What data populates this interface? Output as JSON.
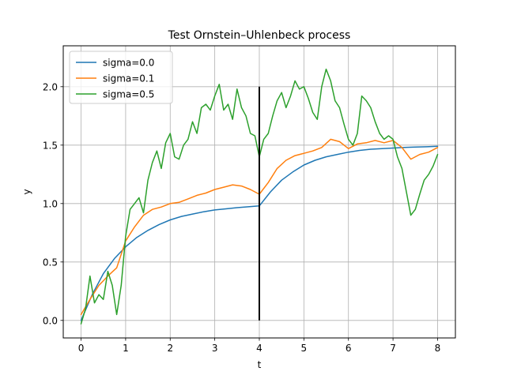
{
  "chart_data": {
    "type": "line",
    "title": "Test Ornstein–Uhlenbeck process",
    "xlabel": "t",
    "ylabel": "y",
    "xlim": [
      -0.4,
      8.4
    ],
    "ylim": [
      -0.15,
      2.35
    ],
    "xticks": [
      0,
      1,
      2,
      3,
      4,
      5,
      6,
      7,
      8
    ],
    "yticks": [
      0.0,
      0.5,
      1.0,
      1.5,
      2.0
    ],
    "ytick_labels": [
      "0.0",
      "0.5",
      "1.0",
      "1.5",
      "2.0"
    ],
    "grid": true,
    "legend_position": "top-left",
    "series": [
      {
        "name": "sigma=0.0",
        "color": "#1f77b4",
        "x": [
          0,
          0.25,
          0.5,
          0.75,
          1.0,
          1.25,
          1.5,
          1.75,
          2.0,
          2.25,
          2.5,
          2.75,
          3.0,
          3.25,
          3.5,
          3.75,
          4.0,
          4.25,
          4.5,
          4.75,
          5.0,
          5.25,
          5.5,
          5.75,
          6.0,
          6.25,
          6.5,
          6.75,
          7.0,
          7.25,
          7.5,
          7.75,
          8.0
        ],
        "y": [
          0.0,
          0.22,
          0.4,
          0.53,
          0.63,
          0.71,
          0.77,
          0.82,
          0.86,
          0.89,
          0.91,
          0.93,
          0.945,
          0.955,
          0.965,
          0.972,
          0.98,
          1.1,
          1.2,
          1.27,
          1.33,
          1.37,
          1.4,
          1.42,
          1.44,
          1.455,
          1.465,
          1.47,
          1.475,
          1.48,
          1.483,
          1.486,
          1.49
        ]
      },
      {
        "name": "sigma=0.1",
        "color": "#ff7f0e",
        "x": [
          0,
          0.2,
          0.4,
          0.6,
          0.8,
          1.0,
          1.2,
          1.4,
          1.6,
          1.8,
          2.0,
          2.2,
          2.4,
          2.6,
          2.8,
          3.0,
          3.2,
          3.4,
          3.6,
          3.8,
          4.0,
          4.2,
          4.4,
          4.6,
          4.8,
          5.0,
          5.2,
          5.4,
          5.6,
          5.8,
          6.0,
          6.2,
          6.4,
          6.6,
          6.8,
          7.0,
          7.2,
          7.4,
          7.6,
          7.8,
          8.0
        ],
        "y": [
          0.05,
          0.18,
          0.3,
          0.38,
          0.45,
          0.68,
          0.8,
          0.9,
          0.95,
          0.97,
          1.0,
          1.01,
          1.04,
          1.07,
          1.09,
          1.12,
          1.14,
          1.16,
          1.15,
          1.12,
          1.08,
          1.18,
          1.3,
          1.37,
          1.41,
          1.43,
          1.45,
          1.48,
          1.55,
          1.53,
          1.47,
          1.51,
          1.52,
          1.54,
          1.52,
          1.54,
          1.48,
          1.38,
          1.42,
          1.44,
          1.48
        ]
      },
      {
        "name": "sigma=0.5",
        "color": "#2ca02c",
        "x": [
          0,
          0.1,
          0.2,
          0.3,
          0.4,
          0.5,
          0.6,
          0.7,
          0.8,
          0.9,
          1.0,
          1.1,
          1.2,
          1.3,
          1.4,
          1.5,
          1.6,
          1.7,
          1.8,
          1.9,
          2.0,
          2.1,
          2.2,
          2.3,
          2.4,
          2.5,
          2.6,
          2.7,
          2.8,
          2.9,
          3.0,
          3.1,
          3.2,
          3.3,
          3.4,
          3.5,
          3.6,
          3.7,
          3.8,
          3.9,
          4.0,
          4.1,
          4.2,
          4.3,
          4.4,
          4.5,
          4.6,
          4.7,
          4.8,
          4.9,
          5.0,
          5.1,
          5.2,
          5.3,
          5.4,
          5.5,
          5.6,
          5.7,
          5.8,
          5.9,
          6.0,
          6.1,
          6.2,
          6.3,
          6.4,
          6.5,
          6.6,
          6.7,
          6.8,
          6.9,
          7.0,
          7.1,
          7.2,
          7.3,
          7.4,
          7.5,
          7.6,
          7.7,
          7.8,
          7.9,
          8.0
        ],
        "y": [
          -0.03,
          0.1,
          0.38,
          0.15,
          0.22,
          0.18,
          0.42,
          0.3,
          0.05,
          0.3,
          0.72,
          0.95,
          1.0,
          1.05,
          0.92,
          1.2,
          1.35,
          1.45,
          1.3,
          1.52,
          1.6,
          1.4,
          1.38,
          1.5,
          1.55,
          1.7,
          1.6,
          1.82,
          1.85,
          1.8,
          1.92,
          2.02,
          1.8,
          1.85,
          1.72,
          1.98,
          1.82,
          1.75,
          1.6,
          1.58,
          1.4,
          1.55,
          1.6,
          1.75,
          1.88,
          1.95,
          1.82,
          1.92,
          2.05,
          1.98,
          2.0,
          1.9,
          1.78,
          1.72,
          2.0,
          2.15,
          2.05,
          1.88,
          1.82,
          1.68,
          1.55,
          1.5,
          1.6,
          1.92,
          1.88,
          1.82,
          1.7,
          1.6,
          1.55,
          1.58,
          1.55,
          1.4,
          1.3,
          1.1,
          0.9,
          0.95,
          1.08,
          1.2,
          1.25,
          1.32,
          1.42
        ]
      }
    ],
    "annotations": [
      {
        "kind": "vertical-line",
        "x": 4,
        "y0": 0.0,
        "y1": 2.0,
        "color": "#000000"
      }
    ]
  }
}
